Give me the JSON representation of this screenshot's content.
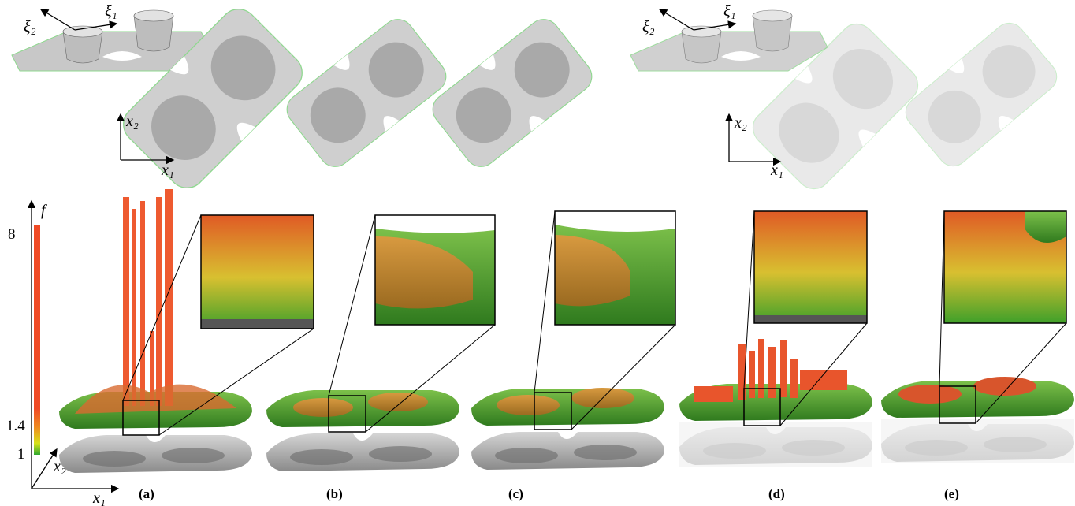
{
  "top": {
    "left_3d_axes": {
      "xi1": "ξ₁",
      "xi2": "ξ₂"
    },
    "left_2d_axes": {
      "x1": "x₁",
      "x2": "x₂"
    },
    "right_3d_axes": {
      "xi1": "ξ₁",
      "xi2": "ξ₂"
    },
    "right_2d_axes": {
      "x1": "x₁",
      "x2": "x₂"
    }
  },
  "bottom": {
    "colorbar": {
      "label": "f",
      "ticks": [
        8,
        1.4,
        1
      ]
    },
    "axes": {
      "x1": "x₁",
      "x2": "x₂"
    },
    "captions": [
      "(a)",
      "(b)",
      "(c)",
      "(d)",
      "(e)"
    ]
  }
}
